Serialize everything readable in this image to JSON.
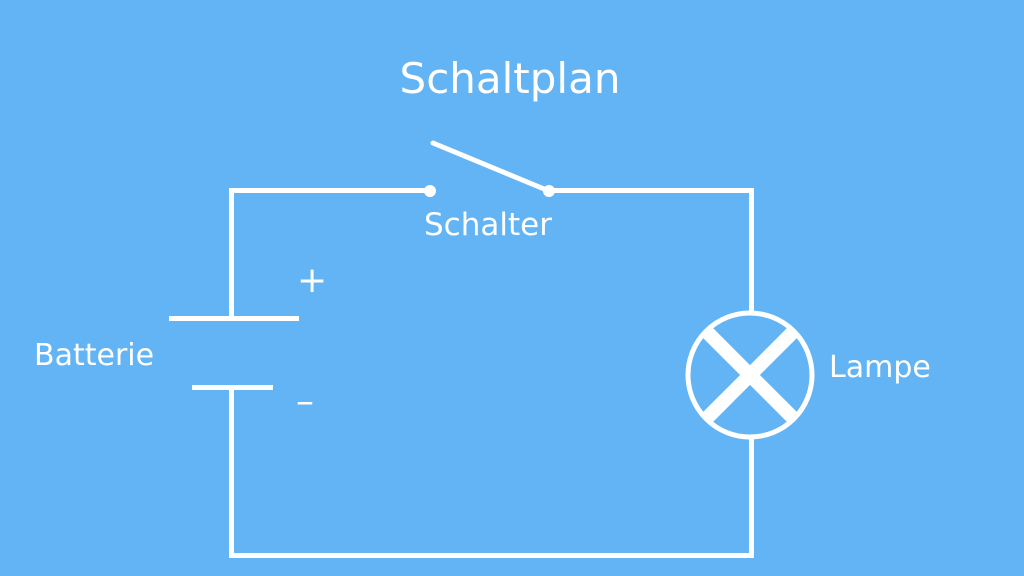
{
  "title": "Schaltplan",
  "labels": {
    "switch": "Schalter",
    "battery": "Batterie",
    "lamp": "Lampe",
    "plus": "+",
    "minus": "–"
  },
  "colors": {
    "background": "#63b4f5",
    "foreground": "#ffffff"
  }
}
